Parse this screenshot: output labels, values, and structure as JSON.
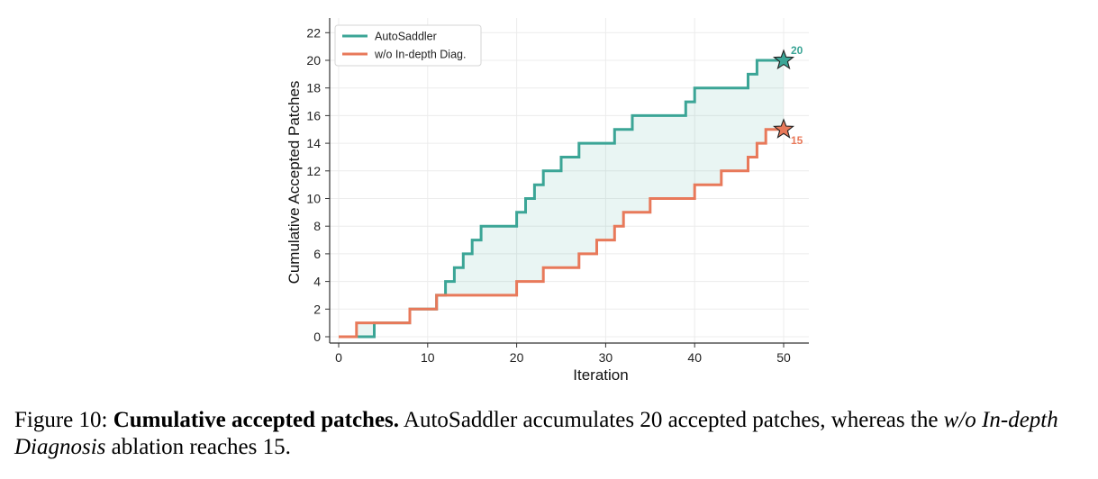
{
  "chart_data": {
    "type": "line",
    "step": true,
    "xlabel": "Iteration",
    "ylabel": "Cumulative Accepted Patches",
    "xlim": [
      -1,
      53
    ],
    "ylim": [
      -0.5,
      23
    ],
    "xticks": [
      0,
      10,
      20,
      30,
      40,
      50
    ],
    "yticks": [
      0,
      2,
      4,
      6,
      8,
      10,
      12,
      14,
      16,
      18,
      20,
      22
    ],
    "grid": true,
    "legend_position": "top-left",
    "fill_between": true,
    "series": [
      {
        "name": "AutoSaddler",
        "color": "#3ba596",
        "x": [
          0,
          4,
          8,
          11,
          12,
          13,
          14,
          15,
          16,
          20,
          21,
          22,
          23,
          25,
          27,
          31,
          33,
          39,
          40,
          46,
          47,
          50
        ],
        "y": [
          0,
          1,
          2,
          3,
          4,
          5,
          6,
          7,
          8,
          9,
          10,
          11,
          12,
          13,
          14,
          15,
          16,
          17,
          18,
          19,
          20,
          20
        ],
        "end_label": "20"
      },
      {
        "name": "w/o In-depth Diag.",
        "color": "#e8795a",
        "x": [
          0,
          2,
          8,
          11,
          20,
          23,
          27,
          29,
          31,
          32,
          35,
          40,
          43,
          46,
          47,
          48,
          50
        ],
        "y": [
          0,
          1,
          2,
          3,
          4,
          5,
          6,
          7,
          8,
          9,
          10,
          11,
          12,
          13,
          14,
          15,
          15
        ],
        "end_label": "15"
      }
    ]
  },
  "caption": {
    "prefix": "Figure 10: ",
    "bold": "Cumulative accepted patches.",
    "text1": " AutoSaddler accumulates 20 accepted patches, whereas the ",
    "italic": "w/o In-depth Diagnosis",
    "text2": " ablation reaches 15."
  }
}
